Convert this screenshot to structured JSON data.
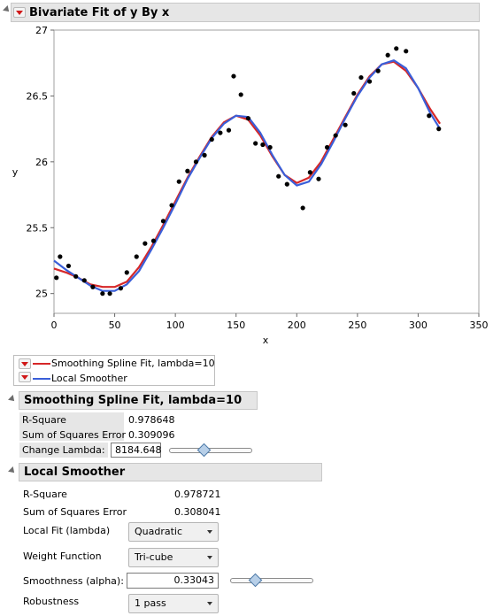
{
  "report": {
    "title": "Bivariate Fit of y By x"
  },
  "plot": {
    "ylabel": "y",
    "xlabel": "x"
  },
  "legend": {
    "items": [
      {
        "label": "Smoothing Spline Fit, lambda=10",
        "color": "#d62728"
      },
      {
        "label": "Local Smoother",
        "color": "#3a5fd9"
      }
    ]
  },
  "spline_panel": {
    "title": "Smoothing Spline Fit, lambda=10",
    "rows": [
      {
        "label": "R-Square",
        "value": "0.978648"
      },
      {
        "label": "Sum of Squares Error",
        "value": "0.309096"
      }
    ],
    "change_lambda_label": "Change Lambda:",
    "change_lambda_value": "8184.648",
    "lambda_slider_fraction": 0.42
  },
  "local_panel": {
    "title": "Local Smoother",
    "rows": [
      {
        "label": "R-Square",
        "value": "0.978721"
      },
      {
        "label": "Sum of Squares Error",
        "value": "0.308041"
      }
    ],
    "local_fit_label": "Local Fit (lambda)",
    "local_fit_value": "Quadratic",
    "weight_label": "Weight Function",
    "weight_value": "Tri-cube",
    "smoothness_label": "Smoothness (alpha):",
    "smoothness_value": "0.33043",
    "smoothness_slider_fraction": 0.3,
    "robustness_label": "Robustness",
    "robustness_value": "1 pass"
  },
  "chart_data": {
    "type": "scatter",
    "xlabel": "x",
    "ylabel": "y",
    "xlim": [
      0,
      350
    ],
    "ylim": [
      24.85,
      27
    ],
    "xticks": [
      0,
      50,
      100,
      150,
      200,
      250,
      300,
      350
    ],
    "yticks": [
      25,
      25.5,
      26,
      26.5,
      27
    ],
    "grid": false,
    "points": [
      [
        2,
        25.12
      ],
      [
        5,
        25.28
      ],
      [
        12,
        25.21
      ],
      [
        18,
        25.13
      ],
      [
        25,
        25.1
      ],
      [
        32,
        25.05
      ],
      [
        40,
        25.0
      ],
      [
        46,
        25.0
      ],
      [
        55,
        25.04
      ],
      [
        60,
        25.16
      ],
      [
        68,
        25.28
      ],
      [
        75,
        25.38
      ],
      [
        82,
        25.4
      ],
      [
        90,
        25.55
      ],
      [
        97,
        25.67
      ],
      [
        103,
        25.85
      ],
      [
        110,
        25.93
      ],
      [
        117,
        26.0
      ],
      [
        124,
        26.05
      ],
      [
        130,
        26.17
      ],
      [
        137,
        26.22
      ],
      [
        144,
        26.24
      ],
      [
        148,
        26.65
      ],
      [
        154,
        26.51
      ],
      [
        160,
        26.33
      ],
      [
        166,
        26.14
      ],
      [
        172,
        26.13
      ],
      [
        178,
        26.11
      ],
      [
        185,
        25.89
      ],
      [
        192,
        25.83
      ],
      [
        205,
        25.65
      ],
      [
        211,
        25.92
      ],
      [
        218,
        25.87
      ],
      [
        225,
        26.11
      ],
      [
        232,
        26.2
      ],
      [
        240,
        26.28
      ],
      [
        247,
        26.52
      ],
      [
        253,
        26.64
      ],
      [
        260,
        26.61
      ],
      [
        267,
        26.69
      ],
      [
        275,
        26.81
      ],
      [
        282,
        26.86
      ],
      [
        290,
        26.84
      ],
      [
        309,
        26.35
      ],
      [
        317,
        26.25
      ]
    ],
    "series": [
      {
        "name": "Smoothing Spline Fit, lambda=10",
        "color": "#d62728",
        "x": [
          0,
          10,
          20,
          30,
          40,
          50,
          60,
          70,
          80,
          90,
          100,
          110,
          120,
          130,
          140,
          150,
          160,
          170,
          180,
          190,
          200,
          210,
          220,
          230,
          240,
          250,
          260,
          270,
          280,
          290,
          300,
          310,
          318
        ],
        "y": [
          25.19,
          25.16,
          25.12,
          25.07,
          25.05,
          25.05,
          25.09,
          25.2,
          25.35,
          25.52,
          25.7,
          25.88,
          26.04,
          26.19,
          26.3,
          26.35,
          26.32,
          26.2,
          26.04,
          25.9,
          25.84,
          25.88,
          26.0,
          26.17,
          26.34,
          26.51,
          26.65,
          26.74,
          26.76,
          26.69,
          26.56,
          26.4,
          26.29
        ]
      },
      {
        "name": "Local Smoother",
        "color": "#3a5fd9",
        "x": [
          0,
          10,
          20,
          30,
          40,
          50,
          60,
          70,
          80,
          90,
          100,
          110,
          120,
          130,
          140,
          150,
          160,
          170,
          180,
          190,
          200,
          210,
          220,
          230,
          240,
          250,
          260,
          270,
          280,
          290,
          300,
          310,
          318
        ],
        "y": [
          25.25,
          25.18,
          25.12,
          25.06,
          25.02,
          25.02,
          25.07,
          25.17,
          25.33,
          25.5,
          25.68,
          25.87,
          26.03,
          26.18,
          26.29,
          26.35,
          26.34,
          26.22,
          26.05,
          25.9,
          25.82,
          25.85,
          25.98,
          26.15,
          26.33,
          26.5,
          26.64,
          26.74,
          26.77,
          26.71,
          26.56,
          26.37,
          26.25
        ]
      }
    ]
  }
}
